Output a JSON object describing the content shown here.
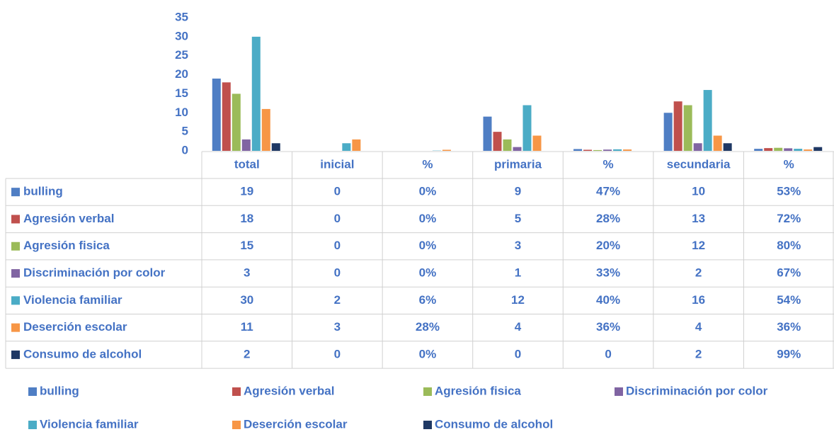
{
  "chart_data": {
    "type": "bar",
    "categories": [
      "total",
      "inicial",
      "%",
      "primaria",
      "%",
      "secundaria",
      "%"
    ],
    "ylim": [
      0,
      35
    ],
    "yticks": [
      0,
      5,
      10,
      15,
      20,
      25,
      30,
      35
    ],
    "grid": false,
    "legend": "bottom",
    "series": [
      {
        "name": "bulling",
        "color": "#4f7ec4",
        "values": [
          19,
          0,
          0,
          9,
          0.47,
          10,
          0.53
        ],
        "value_labels": [
          "19",
          "0",
          "0%",
          "9",
          "47%",
          "10",
          "53%"
        ]
      },
      {
        "name": "Agresión verbal",
        "color": "#c0504d",
        "values": [
          18,
          0,
          0,
          5,
          0.28,
          13,
          0.72
        ],
        "value_labels": [
          "18",
          "0",
          "0%",
          "5",
          "28%",
          "13",
          "72%"
        ]
      },
      {
        "name": "Agresión fisica",
        "color": "#9bbb59",
        "values": [
          15,
          0,
          0,
          3,
          0.2,
          12,
          0.8
        ],
        "value_labels": [
          "15",
          "0",
          "0%",
          "3",
          "20%",
          "12",
          "80%"
        ]
      },
      {
        "name": "Discriminación por color",
        "color": "#8064a2",
        "values": [
          3,
          0,
          0,
          1,
          0.33,
          2,
          0.67
        ],
        "value_labels": [
          "3",
          "0",
          "0%",
          "1",
          "33%",
          "2",
          "67%"
        ]
      },
      {
        "name": "Violencia familiar",
        "color": "#4bacc6",
        "values": [
          30,
          2,
          0.06,
          12,
          0.4,
          16,
          0.54
        ],
        "value_labels": [
          "30",
          "2",
          "6%",
          "12",
          "40%",
          "16",
          "54%"
        ]
      },
      {
        "name": "Deserción escolar",
        "color": "#f79646",
        "values": [
          11,
          3,
          0.28,
          4,
          0.36,
          4,
          0.36
        ],
        "value_labels": [
          "11",
          "3",
          "28%",
          "4",
          "36%",
          "4",
          "36%"
        ]
      },
      {
        "name": "Consumo de alcohol",
        "color": "#1f3864",
        "values": [
          2,
          0,
          0,
          0,
          0,
          2,
          0.99
        ],
        "value_labels": [
          "2",
          "0",
          "0%",
          "0",
          "0",
          "2",
          "99%"
        ]
      }
    ]
  }
}
